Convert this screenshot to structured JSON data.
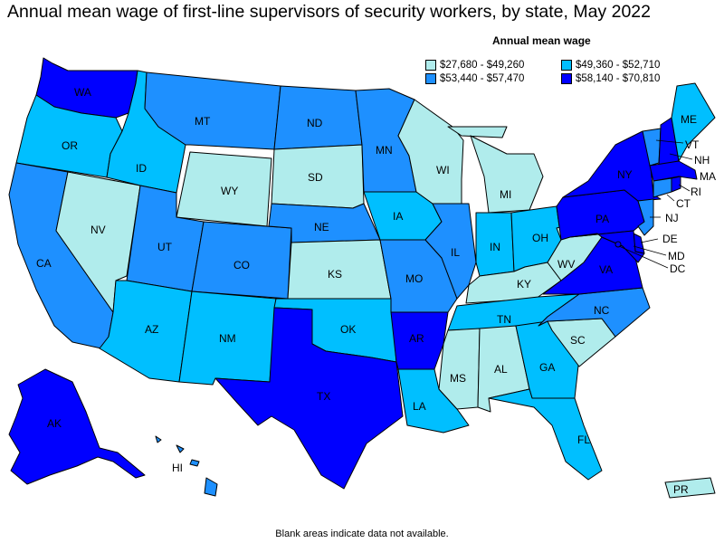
{
  "title": "Annual mean wage of first-line supervisors of security workers, by state, May 2022",
  "legend": {
    "title": "Annual mean wage",
    "bins": [
      {
        "label": "$27,680 - $49,260",
        "color": "#b0ecec"
      },
      {
        "label": "$49,360 - $52,710",
        "color": "#00bfff"
      },
      {
        "label": "$53,440 - $57,470",
        "color": "#1e90ff"
      },
      {
        "label": "$58,140 - $70,810",
        "color": "#0000ff"
      }
    ]
  },
  "footnote": "Blank areas indicate data not available.",
  "states": {
    "WA": {
      "label": "WA",
      "bin": 3
    },
    "OR": {
      "label": "OR",
      "bin": 1
    },
    "CA": {
      "label": "CA",
      "bin": 2
    },
    "NV": {
      "label": "NV",
      "bin": 0
    },
    "ID": {
      "label": "ID",
      "bin": 1
    },
    "MT": {
      "label": "MT",
      "bin": 2
    },
    "WY": {
      "label": "WY",
      "bin": 0
    },
    "UT": {
      "label": "UT",
      "bin": 2
    },
    "AZ": {
      "label": "AZ",
      "bin": 1
    },
    "CO": {
      "label": "CO",
      "bin": 2
    },
    "NM": {
      "label": "NM",
      "bin": 1
    },
    "ND": {
      "label": "ND",
      "bin": 2
    },
    "SD": {
      "label": "SD",
      "bin": 0
    },
    "NE": {
      "label": "NE",
      "bin": 2
    },
    "KS": {
      "label": "KS",
      "bin": 0
    },
    "OK": {
      "label": "OK",
      "bin": 1
    },
    "TX": {
      "label": "TX",
      "bin": 3
    },
    "MN": {
      "label": "MN",
      "bin": 2
    },
    "IA": {
      "label": "IA",
      "bin": 1
    },
    "MO": {
      "label": "MO",
      "bin": 2
    },
    "AR": {
      "label": "AR",
      "bin": 3
    },
    "LA": {
      "label": "LA",
      "bin": 1
    },
    "WI": {
      "label": "WI",
      "bin": 0
    },
    "IL": {
      "label": "IL",
      "bin": 2
    },
    "MI": {
      "label": "MI",
      "bin": 0
    },
    "IN": {
      "label": "IN",
      "bin": 1
    },
    "OH": {
      "label": "OH",
      "bin": 1
    },
    "KY": {
      "label": "KY",
      "bin": 0
    },
    "TN": {
      "label": "TN",
      "bin": 1
    },
    "MS": {
      "label": "MS",
      "bin": 0
    },
    "AL": {
      "label": "AL",
      "bin": 0
    },
    "GA": {
      "label": "GA",
      "bin": 1
    },
    "FL": {
      "label": "FL",
      "bin": 1
    },
    "SC": {
      "label": "SC",
      "bin": 0
    },
    "NC": {
      "label": "NC",
      "bin": 2
    },
    "VA": {
      "label": "VA",
      "bin": 3
    },
    "WV": {
      "label": "WV",
      "bin": 0
    },
    "PA": {
      "label": "PA",
      "bin": 3
    },
    "NY": {
      "label": "NY",
      "bin": 3
    },
    "VT": {
      "label": "VT",
      "bin": 2
    },
    "NH": {
      "label": "NH",
      "bin": 3
    },
    "ME": {
      "label": "ME",
      "bin": 1
    },
    "MA": {
      "label": "MA",
      "bin": 3
    },
    "RI": {
      "label": "RI",
      "bin": 3
    },
    "CT": {
      "label": "CT",
      "bin": 2
    },
    "NJ": {
      "label": "NJ",
      "bin": 2
    },
    "DE": {
      "label": "DE",
      "bin": 3
    },
    "MD": {
      "label": "MD",
      "bin": 3
    },
    "DC": {
      "label": "DC",
      "bin": 3
    },
    "AK": {
      "label": "AK",
      "bin": 3
    },
    "HI": {
      "label": "HI",
      "bin": 2
    },
    "PR": {
      "label": "PR",
      "bin": 0
    }
  }
}
